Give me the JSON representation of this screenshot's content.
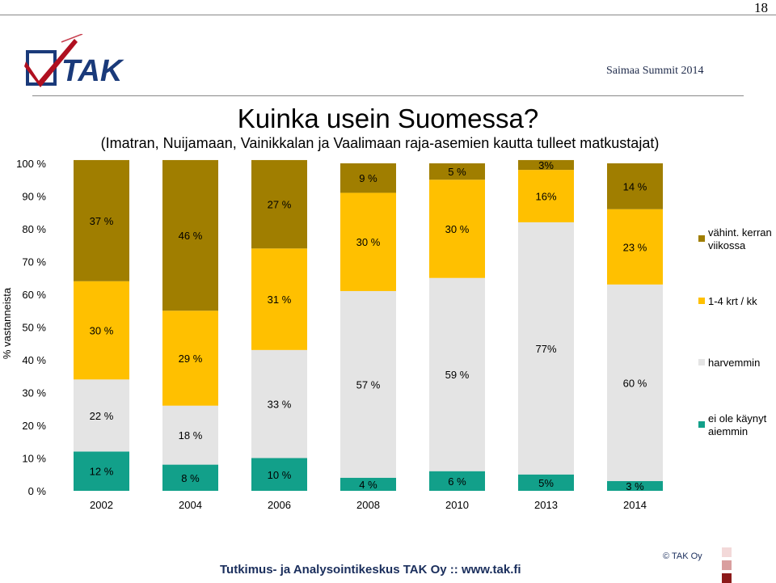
{
  "page_number": "18",
  "event": "Saimaa Summit 2014",
  "logo_text": "TAK",
  "title": "Kuinka usein Suomessa?",
  "subtitle": "(Imatran, Nuijamaan, Vainikkalan ja Vaalimaan raja-asemien kautta tulleet matkustajat)",
  "footer": "Tutkimus- ja Analysointikeskus TAK Oy  ::  www.tak.fi",
  "copyright": "© TAK Oy",
  "colors": {
    "ei_ole_kaynyt": "#12a08a",
    "harvemmin": "#e4e4e4",
    "krt_kk": "#ffc000",
    "viikossa": "#a07e00",
    "footer_squares": [
      "#f3d9d9",
      "#d99e9e",
      "#8c1a1a"
    ]
  },
  "chart_data": {
    "type": "bar",
    "stacked": true,
    "percent_axis": true,
    "categories": [
      "2002",
      "2004",
      "2006",
      "2008",
      "2010",
      "2013",
      "2014"
    ],
    "ylabel": "% vastanneista",
    "ylim": [
      0,
      100
    ],
    "yticks": [
      "0 %",
      "10 %",
      "20 %",
      "30 %",
      "40 %",
      "50 %",
      "60 %",
      "70 %",
      "80 %",
      "90 %",
      "100 %"
    ],
    "legend_position": "right",
    "series": [
      {
        "name": "ei ole käynyt aiemmin",
        "color": "#12a08a",
        "values": [
          12,
          8,
          10,
          4,
          6,
          5,
          3
        ],
        "labels": [
          "12 %",
          "8 %",
          "10 %",
          "4 %",
          "6 %",
          "5%",
          "3 %"
        ]
      },
      {
        "name": "harvemmin",
        "color": "#e4e4e4",
        "values": [
          22,
          18,
          33,
          57,
          59,
          77,
          60
        ],
        "labels": [
          "22 %",
          "18 %",
          "33 %",
          "57 %",
          "59 %",
          "77%",
          "60 %"
        ]
      },
      {
        "name": "1-4 krt / kk",
        "color": "#ffc000",
        "values": [
          30,
          29,
          31,
          30,
          30,
          16,
          23
        ],
        "labels": [
          "30 %",
          "29 %",
          "31 %",
          "30 %",
          "30 %",
          "16%",
          "23 %"
        ]
      },
      {
        "name": "vähint. kerran viikossa",
        "color": "#a07e00",
        "values": [
          37,
          46,
          27,
          9,
          5,
          3,
          14
        ],
        "labels": [
          "37 %",
          "46 %",
          "27 %",
          "9 %",
          "5 %",
          "3%",
          "14 %"
        ]
      }
    ],
    "legend": [
      {
        "text": [
          "vähint. kerran",
          "viikossa"
        ],
        "color": "#a07e00"
      },
      {
        "text": [
          "1-4 krt / kk"
        ],
        "color": "#ffc000"
      },
      {
        "text": [
          "harvemmin"
        ],
        "color": "#e4e4e4"
      },
      {
        "text": [
          "ei ole käynyt",
          "aiemmin"
        ],
        "color": "#12a08a"
      }
    ]
  }
}
